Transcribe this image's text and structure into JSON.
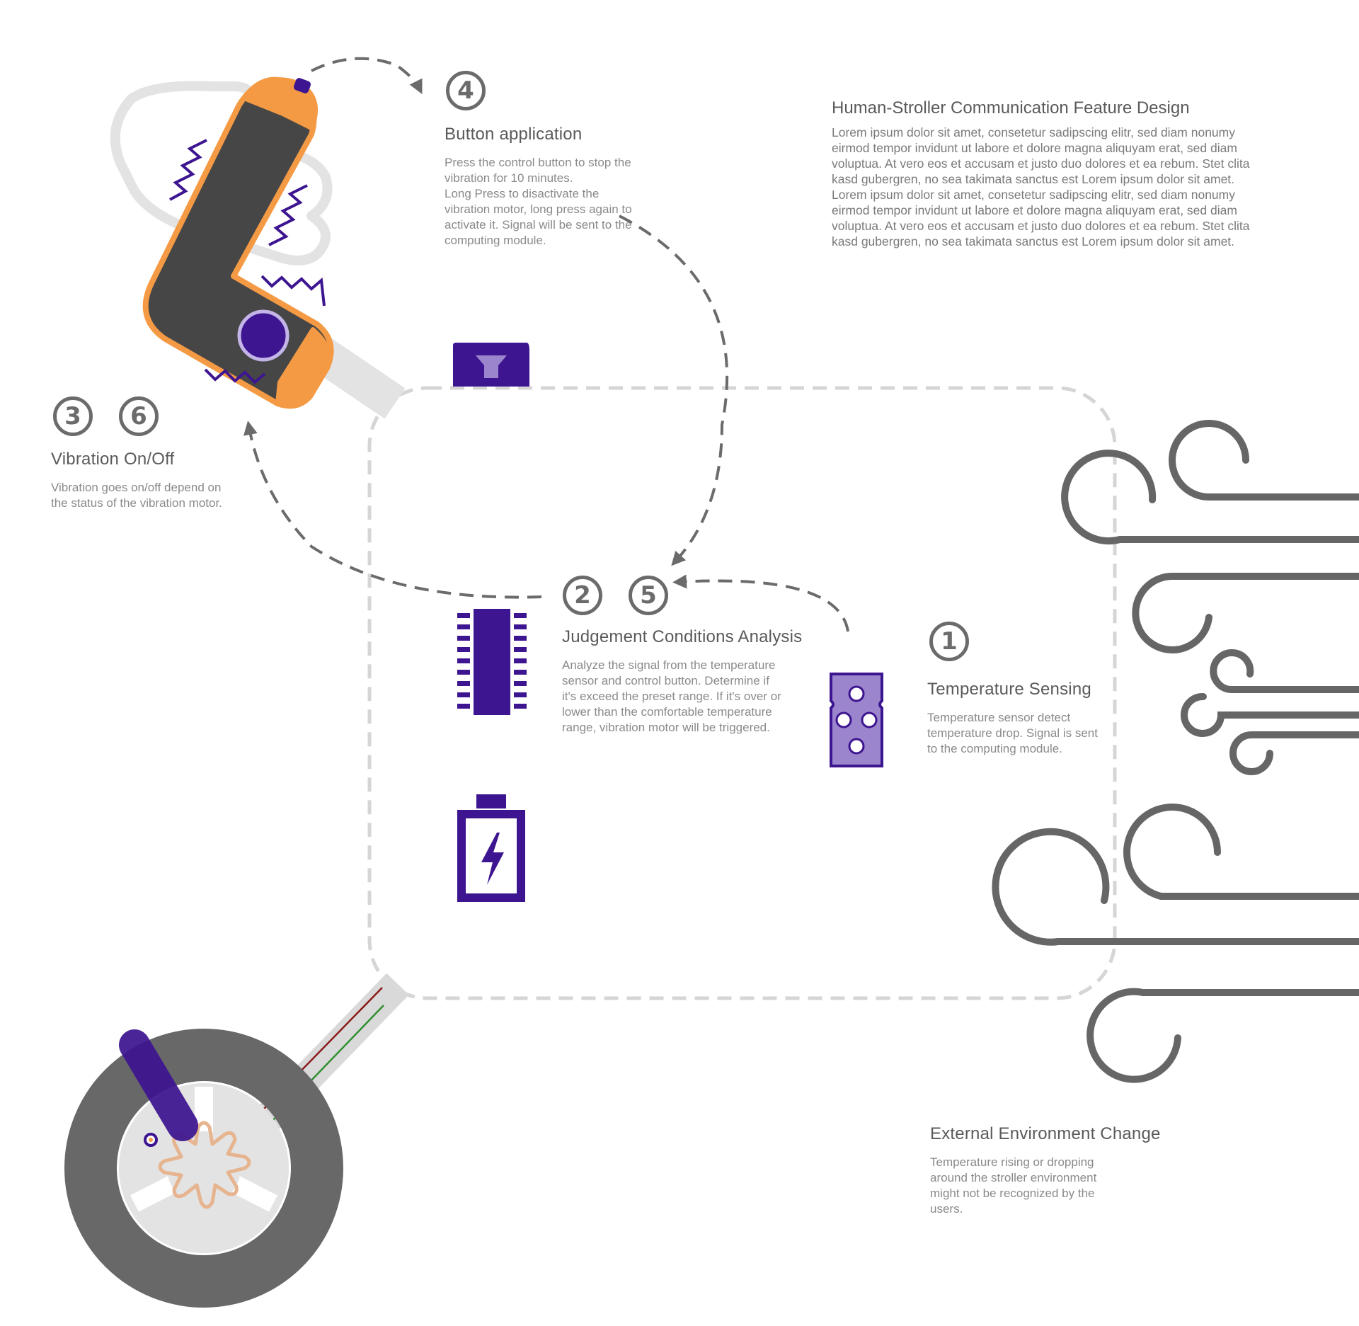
{
  "header": {
    "title": "Human-Stroller Communication Feature Design",
    "body": "Lorem ipsum dolor sit amet, consetetur sadipscing elitr, sed diam nonumy eirmod tempor invidunt ut labore et dolore magna aliquyam erat, sed diam voluptua. At vero eos et accusam et justo duo dolores et ea rebum. Stet clita kasd gubergren, no sea takimata sanctus est Lorem ipsum dolor sit amet. Lorem ipsum dolor sit amet, consetetur sadipscing elitr, sed diam nonumy eirmod tempor invidunt ut labore et dolore magna aliquyam erat, sed diam voluptua. At vero eos et accusam et justo duo dolores et ea rebum. Stet clita kasd gubergren, no sea takimata sanctus est Lorem ipsum dolor sit amet."
  },
  "steps": {
    "button": {
      "numbers": [
        "4"
      ],
      "title": "Button application",
      "desc": "Press the control button to stop the\nvibration for 10 minutes.\nLong Press to disactivate the\nvibration motor, long press again to\nactivate it. Signal will be sent to the\ncomputing module."
    },
    "vibration": {
      "numbers": [
        "3",
        "6"
      ],
      "title": "Vibration On/Off",
      "desc": "Vibration goes on/off depend on\nthe status of the vibration motor."
    },
    "judgement": {
      "numbers": [
        "2",
        "5"
      ],
      "title": "Judgement Conditions Analysis",
      "desc": "Analyze the signal from the temperature\nsensor and control button. Determine if\nit's exceed the preset range. If it's over or\nlower than the comfortable temperature\nrange, vibration motor will be triggered."
    },
    "temperature": {
      "numbers": [
        "1"
      ],
      "title": "Temperature Sensing",
      "desc": "Temperature sensor detect\ntemperature drop. Signal is sent\nto the computing module."
    },
    "environment": {
      "title": "External Environment Change",
      "desc": "Temperature rising or dropping\naround the stroller environment\nmight not be recognized by the\nusers."
    }
  },
  "colors": {
    "purple": "#3d1590",
    "light_purple": "#9b85cc",
    "orange": "#f59a44",
    "dark_gray": "#464646",
    "wind_gray": "#666666",
    "frame_gray": "#d5d5d5"
  },
  "icons": [
    "handle-icon",
    "control-button-icon",
    "vibration-waves-icon",
    "microchip-icon",
    "battery-icon",
    "temperature-sensor-icon",
    "wind-icon",
    "wheel-icon",
    "motor-icon"
  ]
}
